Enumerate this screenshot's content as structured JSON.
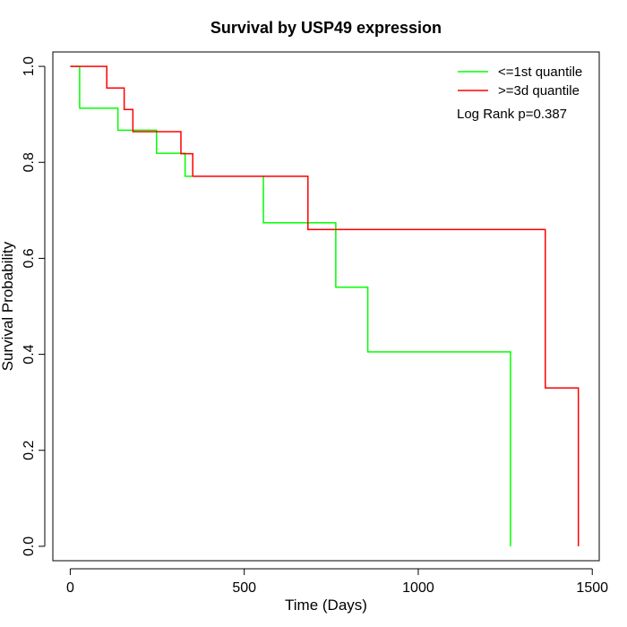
{
  "chart_data": {
    "type": "line",
    "title": "Survival by USP49 expression",
    "xlabel": "Time (Days)",
    "ylabel": "Survival Probability",
    "xlim": [
      -50,
      1520
    ],
    "ylim": [
      -0.03,
      1.03
    ],
    "xticks": [
      0,
      500,
      1000,
      1500
    ],
    "xtick_labels": [
      "0",
      "500",
      "1000",
      "1500"
    ],
    "yticks": [
      0.0,
      0.2,
      0.4,
      0.6,
      0.8,
      1.0
    ],
    "ytick_labels": [
      "0.0",
      "0.2",
      "0.4",
      "0.6",
      "0.8",
      "1.0"
    ],
    "grid": false,
    "legend_position": "top-right",
    "annotation": "Log Rank p=0.387",
    "series": [
      {
        "name": "<=1st quantile",
        "color": "#00ff00",
        "step": true,
        "x": [
          0,
          24,
          27,
          137,
          248,
          330,
          555,
          763,
          855,
          1265,
          1265
        ],
        "y": [
          1.0,
          1.0,
          0.913,
          0.867,
          0.819,
          0.771,
          0.674,
          0.54,
          0.405,
          0.405,
          0.0
        ]
      },
      {
        "name": ">=3d quantile",
        "color": "#ff0000",
        "step": true,
        "x": [
          0,
          105,
          155,
          180,
          318,
          352,
          683,
          1365,
          1460,
          1460
        ],
        "y": [
          1.0,
          0.955,
          0.91,
          0.864,
          0.818,
          0.771,
          0.66,
          0.33,
          0.33,
          0.0
        ]
      }
    ]
  }
}
